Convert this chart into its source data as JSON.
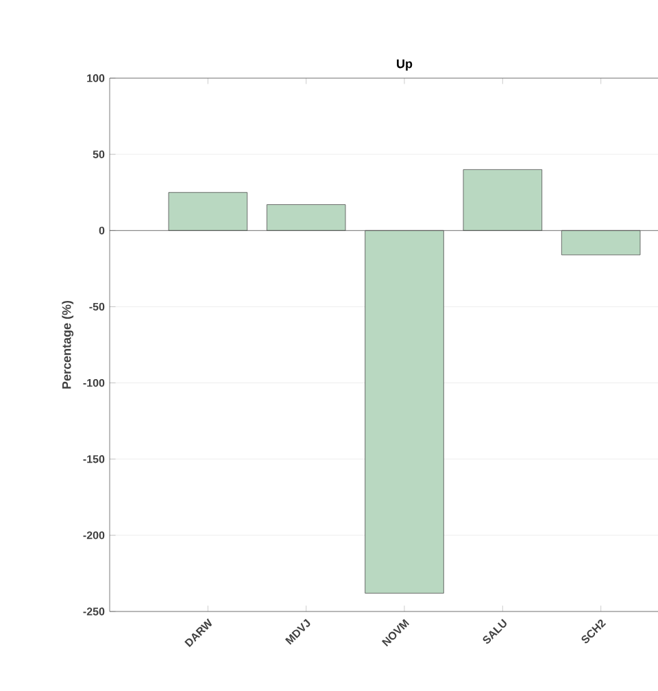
{
  "chart_data": {
    "type": "bar",
    "title": "Up",
    "ylabel": "Percentage (%)",
    "categories": [
      "DARW",
      "MDVJ",
      "NOVM",
      "SALU",
      "SCH2"
    ],
    "values": [
      25,
      17,
      -238,
      40,
      -16
    ],
    "color": "#b9d8c1",
    "ylim": [
      -250,
      100
    ],
    "yticks": [
      -250,
      -200,
      -150,
      -100,
      -50,
      0,
      50,
      100
    ],
    "grid": "y"
  }
}
